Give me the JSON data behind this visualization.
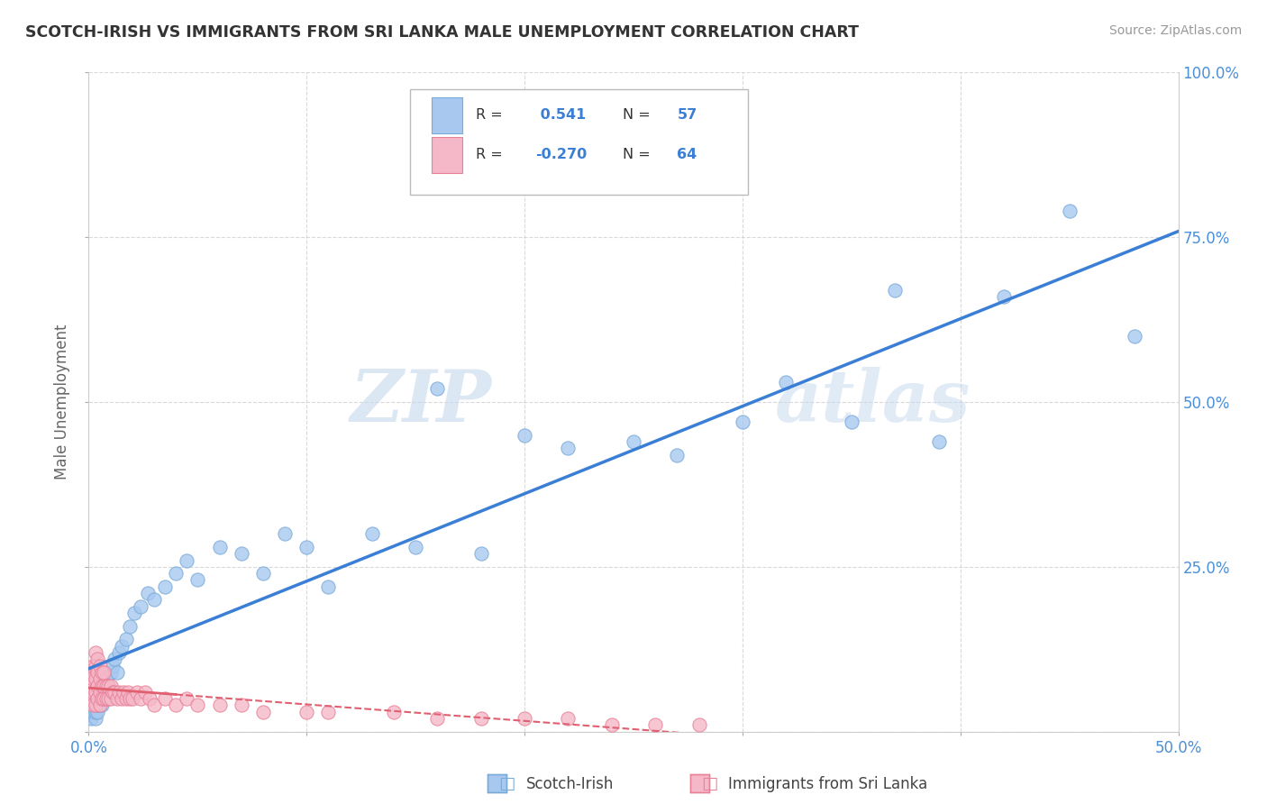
{
  "title": "SCOTCH-IRISH VS IMMIGRANTS FROM SRI LANKA MALE UNEMPLOYMENT CORRELATION CHART",
  "source": "Source: ZipAtlas.com",
  "ylabel": "Male Unemployment",
  "xlim": [
    0.0,
    0.5
  ],
  "ylim": [
    0.0,
    1.0
  ],
  "background_color": "#ffffff",
  "grid_color": "#d0d0d0",
  "blue_color": "#a8c8f0",
  "blue_edge_color": "#7aaad8",
  "pink_color": "#f5b8c8",
  "pink_edge_color": "#e88098",
  "blue_line_color": "#3a7fd5",
  "pink_line_color": "#e06070",
  "blue_r": "0.541",
  "blue_n": "57",
  "pink_r": "-0.270",
  "pink_n": "64",
  "scotch_irish_x": [
    0.001,
    0.002,
    0.002,
    0.003,
    0.003,
    0.003,
    0.004,
    0.004,
    0.004,
    0.005,
    0.005,
    0.005,
    0.006,
    0.006,
    0.007,
    0.007,
    0.008,
    0.008,
    0.009,
    0.01,
    0.011,
    0.012,
    0.013,
    0.014,
    0.015,
    0.017,
    0.019,
    0.021,
    0.024,
    0.027,
    0.03,
    0.035,
    0.04,
    0.045,
    0.05,
    0.06,
    0.07,
    0.08,
    0.09,
    0.1,
    0.11,
    0.13,
    0.15,
    0.16,
    0.18,
    0.2,
    0.22,
    0.25,
    0.27,
    0.3,
    0.32,
    0.35,
    0.37,
    0.39,
    0.42,
    0.45,
    0.48
  ],
  "scotch_irish_y": [
    0.02,
    0.03,
    0.04,
    0.02,
    0.03,
    0.05,
    0.03,
    0.04,
    0.06,
    0.04,
    0.05,
    0.07,
    0.04,
    0.06,
    0.05,
    0.07,
    0.06,
    0.08,
    0.07,
    0.09,
    0.1,
    0.11,
    0.09,
    0.12,
    0.13,
    0.14,
    0.16,
    0.18,
    0.19,
    0.21,
    0.2,
    0.22,
    0.24,
    0.26,
    0.23,
    0.28,
    0.27,
    0.24,
    0.3,
    0.28,
    0.22,
    0.3,
    0.28,
    0.52,
    0.27,
    0.45,
    0.43,
    0.44,
    0.42,
    0.47,
    0.53,
    0.47,
    0.67,
    0.44,
    0.66,
    0.79,
    0.6
  ],
  "sri_lanka_x": [
    0.001,
    0.001,
    0.001,
    0.002,
    0.002,
    0.002,
    0.002,
    0.003,
    0.003,
    0.003,
    0.003,
    0.003,
    0.004,
    0.004,
    0.004,
    0.004,
    0.005,
    0.005,
    0.005,
    0.005,
    0.006,
    0.006,
    0.006,
    0.007,
    0.007,
    0.007,
    0.008,
    0.008,
    0.009,
    0.009,
    0.01,
    0.01,
    0.011,
    0.012,
    0.013,
    0.014,
    0.015,
    0.016,
    0.017,
    0.018,
    0.019,
    0.02,
    0.022,
    0.024,
    0.026,
    0.028,
    0.03,
    0.035,
    0.04,
    0.045,
    0.05,
    0.06,
    0.07,
    0.08,
    0.1,
    0.11,
    0.14,
    0.16,
    0.18,
    0.2,
    0.22,
    0.24,
    0.26,
    0.28
  ],
  "sri_lanka_y": [
    0.05,
    0.07,
    0.09,
    0.04,
    0.06,
    0.08,
    0.1,
    0.04,
    0.06,
    0.08,
    0.1,
    0.12,
    0.05,
    0.07,
    0.09,
    0.11,
    0.04,
    0.06,
    0.08,
    0.1,
    0.05,
    0.07,
    0.09,
    0.05,
    0.07,
    0.09,
    0.05,
    0.07,
    0.05,
    0.07,
    0.05,
    0.07,
    0.06,
    0.06,
    0.05,
    0.06,
    0.05,
    0.06,
    0.05,
    0.06,
    0.05,
    0.05,
    0.06,
    0.05,
    0.06,
    0.05,
    0.04,
    0.05,
    0.04,
    0.05,
    0.04,
    0.04,
    0.04,
    0.03,
    0.03,
    0.03,
    0.03,
    0.02,
    0.02,
    0.02,
    0.02,
    0.01,
    0.01,
    0.01
  ]
}
